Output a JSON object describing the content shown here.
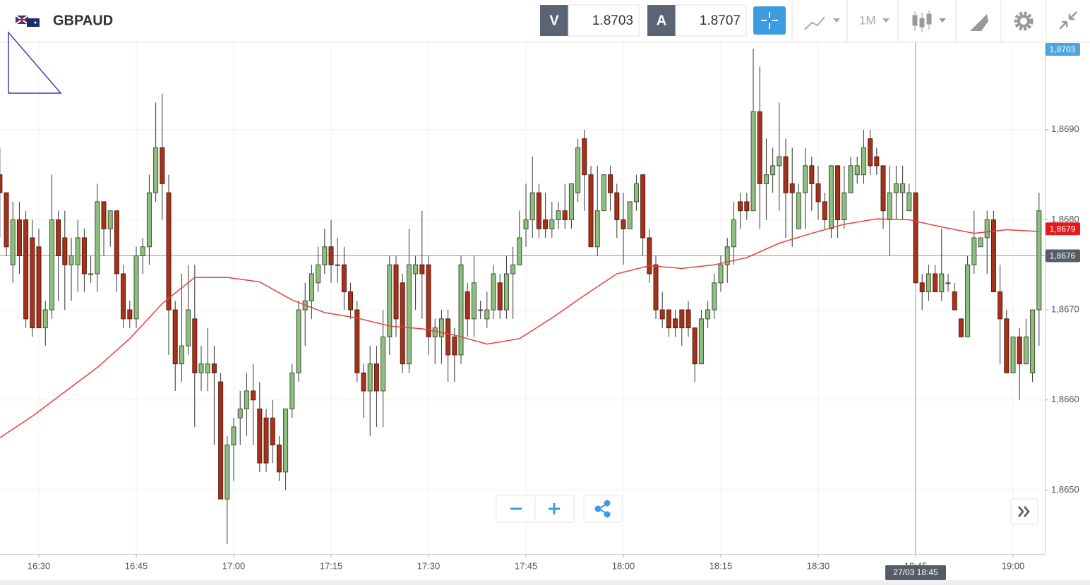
{
  "header": {
    "symbol": "GBPAUD",
    "sell_label": "V",
    "sell_price": "1.8703",
    "buy_label": "A",
    "buy_price": "1.8707",
    "timeframe": "1M"
  },
  "chart_data": {
    "type": "candlestick",
    "up_color": "#8fbf7f",
    "down_color": "#a5321b",
    "candles": [
      {
        "o": 1.8685,
        "h": 1.8688,
        "l": 1.8678,
        "c": 1.8683
      },
      {
        "o": 1.8683,
        "h": 1.8683,
        "l": 1.8676,
        "c": 1.8677
      },
      {
        "o": 1.8675,
        "h": 1.8682,
        "l": 1.8673,
        "c": 1.868
      },
      {
        "o": 1.868,
        "h": 1.8682,
        "l": 1.8674,
        "c": 1.8676
      },
      {
        "o": 1.868,
        "h": 1.8681,
        "l": 1.8668,
        "c": 1.8669
      },
      {
        "o": 1.8678,
        "h": 1.868,
        "l": 1.8667,
        "c": 1.8668
      },
      {
        "o": 1.8677,
        "h": 1.8679,
        "l": 1.8668,
        "c": 1.8668
      },
      {
        "o": 1.8668,
        "h": 1.8671,
        "l": 1.8666,
        "c": 1.867
      },
      {
        "o": 1.867,
        "h": 1.8685,
        "l": 1.8669,
        "c": 1.868
      },
      {
        "o": 1.868,
        "h": 1.8681,
        "l": 1.8671,
        "c": 1.8676
      },
      {
        "o": 1.8678,
        "h": 1.8681,
        "l": 1.867,
        "c": 1.8675
      },
      {
        "o": 1.8675,
        "h": 1.8678,
        "l": 1.8671,
        "c": 1.8676
      },
      {
        "o": 1.8675,
        "h": 1.868,
        "l": 1.8672,
        "c": 1.8678
      },
      {
        "o": 1.8678,
        "h": 1.8679,
        "l": 1.8672,
        "c": 1.8674
      },
      {
        "o": 1.8674,
        "h": 1.8676,
        "l": 1.8673,
        "c": 1.8674
      },
      {
        "o": 1.8674,
        "h": 1.8684,
        "l": 1.8672,
        "c": 1.8682
      },
      {
        "o": 1.8682,
        "h": 1.8682,
        "l": 1.8676,
        "c": 1.8679
      },
      {
        "o": 1.8679,
        "h": 1.8681,
        "l": 1.8677,
        "c": 1.8681
      },
      {
        "o": 1.8681,
        "h": 1.8681,
        "l": 1.8672,
        "c": 1.8674
      },
      {
        "o": 1.8674,
        "h": 1.8675,
        "l": 1.8668,
        "c": 1.8669
      },
      {
        "o": 1.867,
        "h": 1.8671,
        "l": 1.8668,
        "c": 1.8669
      },
      {
        "o": 1.8669,
        "h": 1.8677,
        "l": 1.8668,
        "c": 1.8676
      },
      {
        "o": 1.8676,
        "h": 1.8678,
        "l": 1.8674,
        "c": 1.8677
      },
      {
        "o": 1.8677,
        "h": 1.8685,
        "l": 1.8675,
        "c": 1.8683
      },
      {
        "o": 1.8683,
        "h": 1.8693,
        "l": 1.8682,
        "c": 1.8688
      },
      {
        "o": 1.8688,
        "h": 1.8694,
        "l": 1.868,
        "c": 1.8684
      },
      {
        "o": 1.8683,
        "h": 1.8685,
        "l": 1.8665,
        "c": 1.867
      },
      {
        "o": 1.867,
        "h": 1.8671,
        "l": 1.8661,
        "c": 1.8664
      },
      {
        "o": 1.8664,
        "h": 1.8674,
        "l": 1.8662,
        "c": 1.8666
      },
      {
        "o": 1.8666,
        "h": 1.8675,
        "l": 1.8665,
        "c": 1.867
      },
      {
        "o": 1.8669,
        "h": 1.8675,
        "l": 1.8657,
        "c": 1.8663
      },
      {
        "o": 1.8663,
        "h": 1.8666,
        "l": 1.8661,
        "c": 1.8664
      },
      {
        "o": 1.8663,
        "h": 1.8668,
        "l": 1.8661,
        "c": 1.8664
      },
      {
        "o": 1.8664,
        "h": 1.8666,
        "l": 1.8655,
        "c": 1.8663
      },
      {
        "o": 1.8662,
        "h": 1.8663,
        "l": 1.8649,
        "c": 1.8649
      },
      {
        "o": 1.8649,
        "h": 1.8656,
        "l": 1.8644,
        "c": 1.8655
      },
      {
        "o": 1.8655,
        "h": 1.8658,
        "l": 1.8651,
        "c": 1.8657
      },
      {
        "o": 1.8658,
        "h": 1.8661,
        "l": 1.8655,
        "c": 1.8659
      },
      {
        "o": 1.8659,
        "h": 1.8663,
        "l": 1.8656,
        "c": 1.8661
      },
      {
        "o": 1.8661,
        "h": 1.8664,
        "l": 1.8655,
        "c": 1.866
      },
      {
        "o": 1.8659,
        "h": 1.8662,
        "l": 1.8652,
        "c": 1.8653
      },
      {
        "o": 1.8658,
        "h": 1.8659,
        "l": 1.8652,
        "c": 1.8653
      },
      {
        "o": 1.8658,
        "h": 1.866,
        "l": 1.8653,
        "c": 1.8655
      },
      {
        "o": 1.8655,
        "h": 1.8656,
        "l": 1.8651,
        "c": 1.8652
      },
      {
        "o": 1.8652,
        "h": 1.8659,
        "l": 1.865,
        "c": 1.8659
      },
      {
        "o": 1.8659,
        "h": 1.8664,
        "l": 1.8658,
        "c": 1.8663
      },
      {
        "o": 1.8663,
        "h": 1.8671,
        "l": 1.8662,
        "c": 1.867
      },
      {
        "o": 1.867,
        "h": 1.8673,
        "l": 1.8666,
        "c": 1.8671
      },
      {
        "o": 1.8671,
        "h": 1.8675,
        "l": 1.8669,
        "c": 1.8674
      },
      {
        "o": 1.8673,
        "h": 1.8677,
        "l": 1.8672,
        "c": 1.8675
      },
      {
        "o": 1.8675,
        "h": 1.8679,
        "l": 1.8674,
        "c": 1.8677
      },
      {
        "o": 1.8677,
        "h": 1.868,
        "l": 1.8673,
        "c": 1.8675
      },
      {
        "o": 1.8675,
        "h": 1.8678,
        "l": 1.8673,
        "c": 1.8675
      },
      {
        "o": 1.8675,
        "h": 1.8677,
        "l": 1.867,
        "c": 1.8672
      },
      {
        "o": 1.8672,
        "h": 1.8673,
        "l": 1.8669,
        "c": 1.867
      },
      {
        "o": 1.867,
        "h": 1.8671,
        "l": 1.8662,
        "c": 1.8663
      },
      {
        "o": 1.8663,
        "h": 1.8664,
        "l": 1.8658,
        "c": 1.8661
      },
      {
        "o": 1.8661,
        "h": 1.8666,
        "l": 1.8656,
        "c": 1.8664
      },
      {
        "o": 1.8664,
        "h": 1.8666,
        "l": 1.8657,
        "c": 1.8661
      },
      {
        "o": 1.8661,
        "h": 1.867,
        "l": 1.8657,
        "c": 1.8667
      },
      {
        "o": 1.8667,
        "h": 1.8676,
        "l": 1.8665,
        "c": 1.8675
      },
      {
        "o": 1.8675,
        "h": 1.8676,
        "l": 1.8667,
        "c": 1.8669
      },
      {
        "o": 1.8673,
        "h": 1.8674,
        "l": 1.8663,
        "c": 1.8664
      },
      {
        "o": 1.8664,
        "h": 1.8679,
        "l": 1.8663,
        "c": 1.8675
      },
      {
        "o": 1.8674,
        "h": 1.8676,
        "l": 1.867,
        "c": 1.8675
      },
      {
        "o": 1.8675,
        "h": 1.8681,
        "l": 1.8669,
        "c": 1.8674
      },
      {
        "o": 1.8675,
        "h": 1.8676,
        "l": 1.8665,
        "c": 1.8667
      },
      {
        "o": 1.8667,
        "h": 1.8669,
        "l": 1.8664,
        "c": 1.8668
      },
      {
        "o": 1.8667,
        "h": 1.867,
        "l": 1.8664,
        "c": 1.8669
      },
      {
        "o": 1.8669,
        "h": 1.867,
        "l": 1.8662,
        "c": 1.8665
      },
      {
        "o": 1.8667,
        "h": 1.8668,
        "l": 1.8662,
        "c": 1.8665
      },
      {
        "o": 1.8665,
        "h": 1.8676,
        "l": 1.8664,
        "c": 1.8675
      },
      {
        "o": 1.8672,
        "h": 1.8673,
        "l": 1.8667,
        "c": 1.8669
      },
      {
        "o": 1.8669,
        "h": 1.8676,
        "l": 1.8667,
        "c": 1.8673
      },
      {
        "o": 1.867,
        "h": 1.8671,
        "l": 1.8669,
        "c": 1.867
      },
      {
        "o": 1.8669,
        "h": 1.8672,
        "l": 1.8668,
        "c": 1.867
      },
      {
        "o": 1.867,
        "h": 1.8675,
        "l": 1.8669,
        "c": 1.8674
      },
      {
        "o": 1.8673,
        "h": 1.8674,
        "l": 1.8669,
        "c": 1.867
      },
      {
        "o": 1.867,
        "h": 1.8676,
        "l": 1.8669,
        "c": 1.8674
      },
      {
        "o": 1.8674,
        "h": 1.8677,
        "l": 1.8669,
        "c": 1.8675
      },
      {
        "o": 1.8675,
        "h": 1.8681,
        "l": 1.8675,
        "c": 1.8678
      },
      {
        "o": 1.8679,
        "h": 1.8684,
        "l": 1.8677,
        "c": 1.868
      },
      {
        "o": 1.868,
        "h": 1.8687,
        "l": 1.8678,
        "c": 1.8683
      },
      {
        "o": 1.8683,
        "h": 1.8684,
        "l": 1.8678,
        "c": 1.8679
      },
      {
        "o": 1.868,
        "h": 1.8683,
        "l": 1.8678,
        "c": 1.8679
      },
      {
        "o": 1.8679,
        "h": 1.8682,
        "l": 1.8678,
        "c": 1.868
      },
      {
        "o": 1.868,
        "h": 1.8682,
        "l": 1.8679,
        "c": 1.8681
      },
      {
        "o": 1.8681,
        "h": 1.8684,
        "l": 1.8679,
        "c": 1.868
      },
      {
        "o": 1.868,
        "h": 1.8684,
        "l": 1.8679,
        "c": 1.8684
      },
      {
        "o": 1.8683,
        "h": 1.8689,
        "l": 1.8682,
        "c": 1.8688
      },
      {
        "o": 1.8689,
        "h": 1.869,
        "l": 1.8681,
        "c": 1.8685
      },
      {
        "o": 1.8685,
        "h": 1.8686,
        "l": 1.8677,
        "c": 1.8677
      },
      {
        "o": 1.8677,
        "h": 1.8686,
        "l": 1.8676,
        "c": 1.8681
      },
      {
        "o": 1.8681,
        "h": 1.8685,
        "l": 1.8681,
        "c": 1.8685
      },
      {
        "o": 1.8685,
        "h": 1.8686,
        "l": 1.8681,
        "c": 1.8683
      },
      {
        "o": 1.8683,
        "h": 1.8684,
        "l": 1.8678,
        "c": 1.868
      },
      {
        "o": 1.868,
        "h": 1.8683,
        "l": 1.8675,
        "c": 1.8679
      },
      {
        "o": 1.8679,
        "h": 1.8682,
        "l": 1.8679,
        "c": 1.8682
      },
      {
        "o": 1.8682,
        "h": 1.8685,
        "l": 1.8681,
        "c": 1.8684
      },
      {
        "o": 1.8685,
        "h": 1.8685,
        "l": 1.8676,
        "c": 1.8678
      },
      {
        "o": 1.8678,
        "h": 1.8679,
        "l": 1.8673,
        "c": 1.8674
      },
      {
        "o": 1.8675,
        "h": 1.8676,
        "l": 1.8669,
        "c": 1.867
      },
      {
        "o": 1.867,
        "h": 1.8672,
        "l": 1.8668,
        "c": 1.8669
      },
      {
        "o": 1.867,
        "h": 1.867,
        "l": 1.8667,
        "c": 1.8668
      },
      {
        "o": 1.8669,
        "h": 1.867,
        "l": 1.8667,
        "c": 1.8668
      },
      {
        "o": 1.867,
        "h": 1.867,
        "l": 1.8666,
        "c": 1.8668
      },
      {
        "o": 1.867,
        "h": 1.8671,
        "l": 1.8667,
        "c": 1.8668
      },
      {
        "o": 1.8668,
        "h": 1.8668,
        "l": 1.8662,
        "c": 1.8664
      },
      {
        "o": 1.8664,
        "h": 1.867,
        "l": 1.8664,
        "c": 1.8669
      },
      {
        "o": 1.8669,
        "h": 1.8671,
        "l": 1.8668,
        "c": 1.867
      },
      {
        "o": 1.867,
        "h": 1.8674,
        "l": 1.8669,
        "c": 1.8673
      },
      {
        "o": 1.8673,
        "h": 1.8676,
        "l": 1.8672,
        "c": 1.8675
      },
      {
        "o": 1.8675,
        "h": 1.8678,
        "l": 1.8673,
        "c": 1.8677
      },
      {
        "o": 1.8677,
        "h": 1.8682,
        "l": 1.8675,
        "c": 1.868
      },
      {
        "o": 1.8682,
        "h": 1.8683,
        "l": 1.8679,
        "c": 1.8681
      },
      {
        "o": 1.8682,
        "h": 1.8683,
        "l": 1.868,
        "c": 1.8681
      },
      {
        "o": 1.8681,
        "h": 1.8699,
        "l": 1.8681,
        "c": 1.8692
      },
      {
        "o": 1.8692,
        "h": 1.8697,
        "l": 1.8679,
        "c": 1.8684
      },
      {
        "o": 1.8684,
        "h": 1.8689,
        "l": 1.868,
        "c": 1.8685
      },
      {
        "o": 1.8685,
        "h": 1.8688,
        "l": 1.8683,
        "c": 1.8686
      },
      {
        "o": 1.8686,
        "h": 1.8693,
        "l": 1.8681,
        "c": 1.8687
      },
      {
        "o": 1.8687,
        "h": 1.8689,
        "l": 1.8678,
        "c": 1.8683
      },
      {
        "o": 1.8684,
        "h": 1.8688,
        "l": 1.8677,
        "c": 1.8683
      },
      {
        "o": 1.8679,
        "h": 1.8684,
        "l": 1.8679,
        "c": 1.8683
      },
      {
        "o": 1.8683,
        "h": 1.8688,
        "l": 1.8679,
        "c": 1.8686
      },
      {
        "o": 1.8686,
        "h": 1.8687,
        "l": 1.8681,
        "c": 1.8684
      },
      {
        "o": 1.8684,
        "h": 1.8686,
        "l": 1.868,
        "c": 1.8682
      },
      {
        "o": 1.8682,
        "h": 1.8683,
        "l": 1.8679,
        "c": 1.868
      },
      {
        "o": 1.8679,
        "h": 1.8686,
        "l": 1.8678,
        "c": 1.8686
      },
      {
        "o": 1.8686,
        "h": 1.8686,
        "l": 1.8678,
        "c": 1.868
      },
      {
        "o": 1.868,
        "h": 1.8686,
        "l": 1.8679,
        "c": 1.8683
      },
      {
        "o": 1.8683,
        "h": 1.8687,
        "l": 1.8683,
        "c": 1.8686
      },
      {
        "o": 1.8685,
        "h": 1.8687,
        "l": 1.8684,
        "c": 1.8686
      },
      {
        "o": 1.8685,
        "h": 1.869,
        "l": 1.8684,
        "c": 1.8688
      },
      {
        "o": 1.8689,
        "h": 1.869,
        "l": 1.8685,
        "c": 1.8686
      },
      {
        "o": 1.8687,
        "h": 1.8688,
        "l": 1.8685,
        "c": 1.8686
      },
      {
        "o": 1.8686,
        "h": 1.8686,
        "l": 1.8679,
        "c": 1.8681
      },
      {
        "o": 1.868,
        "h": 1.8686,
        "l": 1.8676,
        "c": 1.8683
      },
      {
        "o": 1.8683,
        "h": 1.8686,
        "l": 1.868,
        "c": 1.8684
      },
      {
        "o": 1.8683,
        "h": 1.8686,
        "l": 1.868,
        "c": 1.8684
      },
      {
        "o": 1.8681,
        "h": 1.8684,
        "l": 1.8681,
        "c": 1.8683
      },
      {
        "o": 1.8683,
        "h": 1.8683,
        "l": 1.8673,
        "c": 1.8673
      },
      {
        "o": 1.8673,
        "h": 1.8674,
        "l": 1.867,
        "c": 1.8672
      },
      {
        "o": 1.8672,
        "h": 1.8675,
        "l": 1.8671,
        "c": 1.8674
      },
      {
        "o": 1.8674,
        "h": 1.8675,
        "l": 1.8672,
        "c": 1.8672
      },
      {
        "o": 1.8672,
        "h": 1.8679,
        "l": 1.8671,
        "c": 1.8674
      },
      {
        "o": 1.8673,
        "h": 1.8674,
        "l": 1.8672,
        "c": 1.8673
      },
      {
        "o": 1.8672,
        "h": 1.8673,
        "l": 1.867,
        "c": 1.867
      },
      {
        "o": 1.8669,
        "h": 1.8669,
        "l": 1.8667,
        "c": 1.8667
      },
      {
        "o": 1.8667,
        "h": 1.8676,
        "l": 1.8667,
        "c": 1.8675
      },
      {
        "o": 1.8675,
        "h": 1.8681,
        "l": 1.8674,
        "c": 1.8678
      },
      {
        "o": 1.8677,
        "h": 1.8678,
        "l": 1.8677,
        "c": 1.8678
      },
      {
        "o": 1.8678,
        "h": 1.8681,
        "l": 1.8674,
        "c": 1.868
      },
      {
        "o": 1.868,
        "h": 1.8681,
        "l": 1.8672,
        "c": 1.8672
      },
      {
        "o": 1.8672,
        "h": 1.8675,
        "l": 1.8664,
        "c": 1.8669
      },
      {
        "o": 1.8669,
        "h": 1.867,
        "l": 1.8663,
        "c": 1.8663
      },
      {
        "o": 1.8663,
        "h": 1.8667,
        "l": 1.8663,
        "c": 1.8667
      },
      {
        "o": 1.8667,
        "h": 1.8668,
        "l": 1.866,
        "c": 1.8664
      },
      {
        "o": 1.8664,
        "h": 1.8669,
        "l": 1.8664,
        "c": 1.8667
      },
      {
        "o": 1.8663,
        "h": 1.867,
        "l": 1.8662,
        "c": 1.867
      },
      {
        "o": 1.867,
        "h": 1.8683,
        "l": 1.8666,
        "c": 1.8681
      }
    ],
    "moving_average": {
      "color": "#e8403a",
      "x": [
        0,
        5,
        10,
        15,
        20,
        25,
        30,
        35,
        40,
        45,
        50,
        55,
        60,
        65,
        70,
        75,
        80,
        85,
        90,
        95,
        100,
        105,
        110,
        115,
        120,
        125,
        130,
        135,
        140,
        145,
        150,
        155,
        160
      ],
      "values": [
        1.86558,
        1.86582,
        1.86609,
        1.86636,
        1.86668,
        1.86707,
        1.86736,
        1.86736,
        1.86731,
        1.86711,
        1.86697,
        1.86691,
        1.86682,
        1.86679,
        1.86672,
        1.86662,
        1.86668,
        1.86691,
        1.86716,
        1.8674,
        1.86749,
        1.86746,
        1.8675,
        1.86758,
        1.86774,
        1.86785,
        1.86795,
        1.86801,
        1.868,
        1.86792,
        1.86785,
        1.86789,
        1.86787
      ]
    },
    "xlim": [
      0.02,
      160.89
    ],
    "ylim": [
      1.86429,
      1.86997
    ],
    "xticks": [
      {
        "value": 6,
        "label": "16:30"
      },
      {
        "value": 21,
        "label": "16:45"
      },
      {
        "value": 36,
        "label": "17:00"
      },
      {
        "value": 51,
        "label": "17:15"
      },
      {
        "value": 66,
        "label": "17:30"
      },
      {
        "value": 81,
        "label": "17:45"
      },
      {
        "value": 96,
        "label": "18:00"
      },
      {
        "value": 111,
        "label": "18:15"
      },
      {
        "value": 126,
        "label": "18:30"
      },
      {
        "value": 141,
        "label": "18:45"
      },
      {
        "value": 156,
        "label": "19:00"
      }
    ],
    "yticks": [
      {
        "value": 1.865,
        "label": "1,8650"
      },
      {
        "value": 1.866,
        "label": "1,8660"
      },
      {
        "value": 1.867,
        "label": "1,8670"
      },
      {
        "value": 1.868,
        "label": "1,8680"
      },
      {
        "value": 1.869,
        "label": "1,8690"
      }
    ],
    "grid": true,
    "price_tags": [
      {
        "value": 1.8703,
        "label": "1,8703",
        "color": "#4ea7dc"
      },
      {
        "value": 1.8679,
        "label": "1,8679",
        "color": "#e8191c"
      }
    ],
    "crosshair": {
      "x": 141,
      "y": 1.8676,
      "x_label": "27/03 18:45",
      "y_label": "1,8676"
    }
  }
}
